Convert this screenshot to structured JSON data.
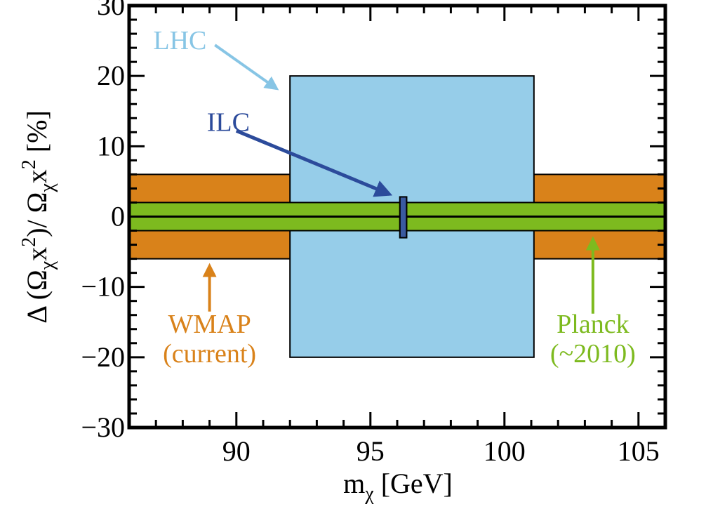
{
  "chart_data": {
    "type": "area",
    "xlabel_main": "m",
    "xlabel_sub": "χ",
    "xlabel_unit": " [GeV]",
    "ylabel": "Δ (Ω",
    "ylabel_parts": [
      "Δ (Ω",
      "χ",
      "x",
      "2",
      ")/ Ω",
      "χ",
      "x",
      "2",
      "   [%]"
    ],
    "xlim": [
      86,
      106
    ],
    "ylim": [
      -30,
      30
    ],
    "x_ticks": [
      90,
      95,
      100,
      105
    ],
    "y_ticks": [
      30,
      20,
      10,
      0,
      -10,
      -20,
      -30
    ],
    "y_tick_labels": [
      "30",
      "20",
      "10",
      "0",
      "−10",
      "−20",
      "−30"
    ],
    "bands": [
      {
        "name": "WMAP (current)",
        "x": [
          86,
          106
        ],
        "y": [
          -6,
          6
        ],
        "color": "#d9821a"
      },
      {
        "name": "LHC",
        "x": [
          92,
          101.1
        ],
        "y": [
          -20,
          20
        ],
        "color": "#96cde9"
      },
      {
        "name": "Planck (~2010)",
        "x": [
          86,
          106
        ],
        "y": [
          -2,
          2
        ],
        "color": "#7dba1f"
      },
      {
        "name": "ILC",
        "x": [
          96.1,
          96.35
        ],
        "y": [
          -3,
          2.8
        ],
        "color": "#3a5aa0"
      }
    ],
    "annotations": [
      {
        "id": "lhc",
        "text": "LHC",
        "color": "#87c5e5",
        "text_x": 86.9,
        "text_y": 23.8,
        "arrow_from": [
          89.2,
          24.4
        ],
        "arrow_to": [
          91.5,
          18.2
        ]
      },
      {
        "id": "ilc",
        "text": "ILC",
        "color": "#2c4b9b",
        "text_x": 88.9,
        "text_y": 12.2,
        "arrow_from": [
          90.0,
          12.2
        ],
        "arrow_to": [
          95.7,
          3.2
        ]
      },
      {
        "id": "wmap",
        "lines": [
          "WMAP",
          "(current)"
        ],
        "color": "#d9821a",
        "text_x": 89.0,
        "text_y": -16.5,
        "arrow_from": [
          89.0,
          -13.5
        ],
        "arrow_to": [
          89.0,
          -7.0
        ]
      },
      {
        "id": "planck",
        "lines": [
          "Planck",
          "(~2010)"
        ],
        "color": "#7dba1f",
        "text_x": 103.3,
        "text_y": -16.5,
        "arrow_from": [
          103.3,
          -13.8
        ],
        "arrow_to": [
          103.3,
          -3.2
        ]
      }
    ]
  }
}
